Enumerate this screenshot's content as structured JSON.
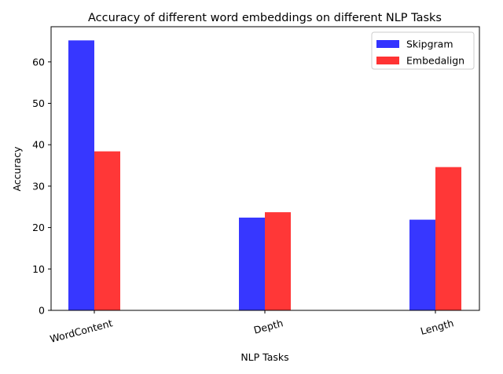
{
  "chart_data": {
    "type": "bar",
    "title": "Accuracy of different word embeddings on different NLP Tasks",
    "xlabel": "NLP Tasks",
    "ylabel": "Accuracy",
    "categories": [
      "WordContent",
      "Depth",
      "Length"
    ],
    "series": [
      {
        "name": "Skipgram",
        "color": "#3333ff",
        "values": [
          65.2,
          22.4,
          21.9
        ]
      },
      {
        "name": "Embedalign",
        "color": "#ff3333",
        "values": [
          38.4,
          23.7,
          34.6
        ]
      }
    ],
    "ylim": [
      0,
      68.5
    ],
    "yticks": [
      0,
      10,
      20,
      30,
      40,
      50,
      60
    ],
    "legend": "top-right",
    "grid": false
  }
}
